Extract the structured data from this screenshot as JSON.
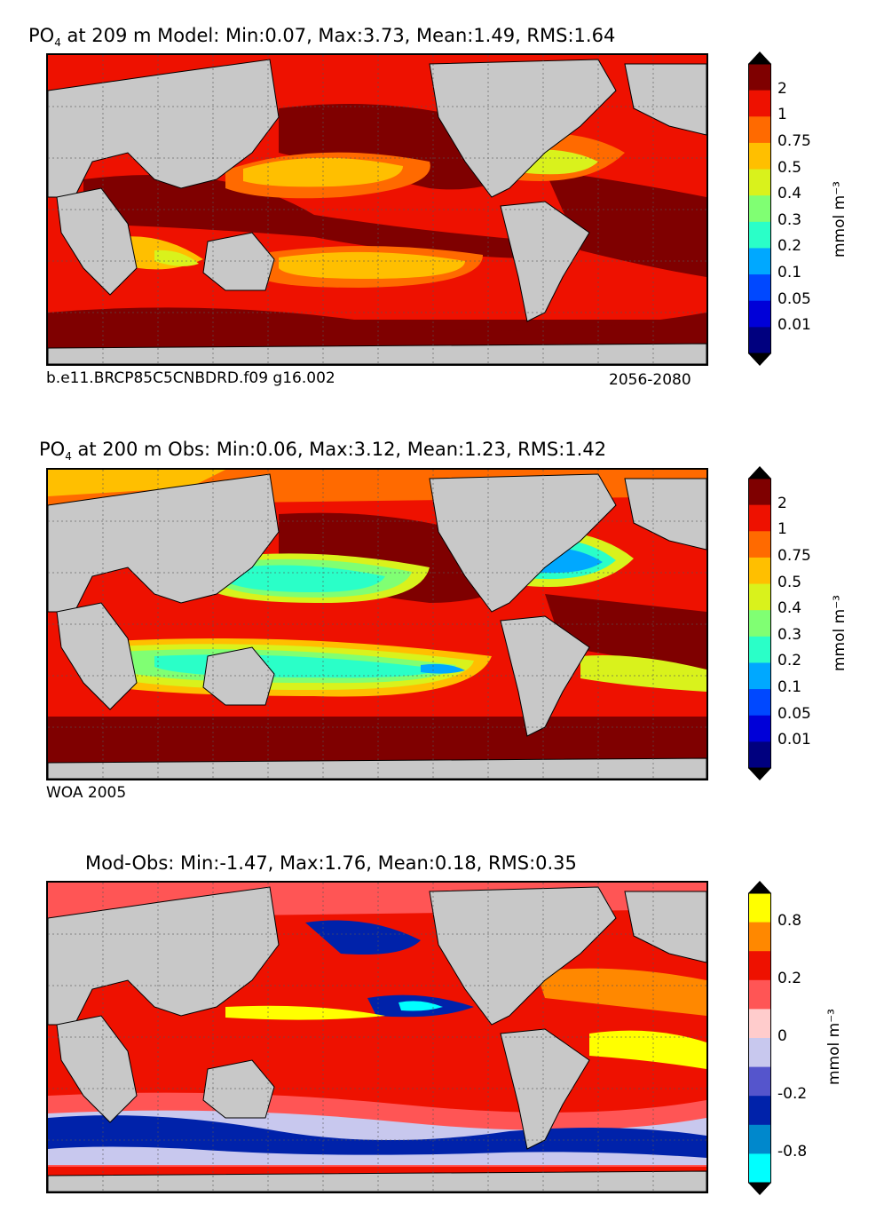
{
  "panels": [
    {
      "title_prefix": "PO",
      "title_sub": "4",
      "title_rest": "  at 209 m Model: Min:0.07, Max:3.73, Mean:1.49, RMS:1.64",
      "left_note": "b.e11.BRCP85C5CNBDRD.f09 g16.002",
      "right_note": "2056-2080",
      "colorbar_unit": "mmol m⁻³",
      "colorbar_ticks": [
        "2",
        "1",
        "0.75",
        "0.5",
        "0.4",
        "0.3",
        "0.2",
        "0.1",
        "0.05",
        "0.01"
      ],
      "colorbar_colors": [
        "#7f0000",
        "#ee1100",
        "#ff6a00",
        "#ffbf00",
        "#d9f21c",
        "#80ff73",
        "#2affc8",
        "#00a8ff",
        "#0048ff",
        "#0000d8",
        "#00007f"
      ]
    },
    {
      "title_prefix": "PO",
      "title_sub": "4",
      "title_rest": "  at 200 m Obs: Min:0.06, Max:3.12, Mean:1.23, RMS:1.42",
      "left_note": "WOA 2005",
      "right_note": "",
      "colorbar_unit": "mmol m⁻³",
      "colorbar_ticks": [
        "2",
        "1",
        "0.75",
        "0.5",
        "0.4",
        "0.3",
        "0.2",
        "0.1",
        "0.05",
        "0.01"
      ],
      "colorbar_colors": [
        "#7f0000",
        "#ee1100",
        "#ff6a00",
        "#ffbf00",
        "#d9f21c",
        "#80ff73",
        "#2affc8",
        "#00a8ff",
        "#0048ff",
        "#0000d8",
        "#00007f"
      ]
    },
    {
      "title_prefix": "",
      "title_sub": "",
      "title_rest": "Mod-Obs: Min:-1.47, Max:1.76, Mean:0.18, RMS:0.35",
      "left_note": "",
      "right_note": "",
      "colorbar_unit": "mmol m⁻³",
      "colorbar_ticks": [
        "0.8",
        "0.2",
        "0",
        "-0.2",
        "-0.8"
      ],
      "colorbar_colors": [
        "#ffff00",
        "#ff8800",
        "#ee1100",
        "#ff5555",
        "#ffcccc",
        "#c8c8ee",
        "#5555cc",
        "#0022aa",
        "#0088cc",
        "#00ffff"
      ]
    }
  ]
}
